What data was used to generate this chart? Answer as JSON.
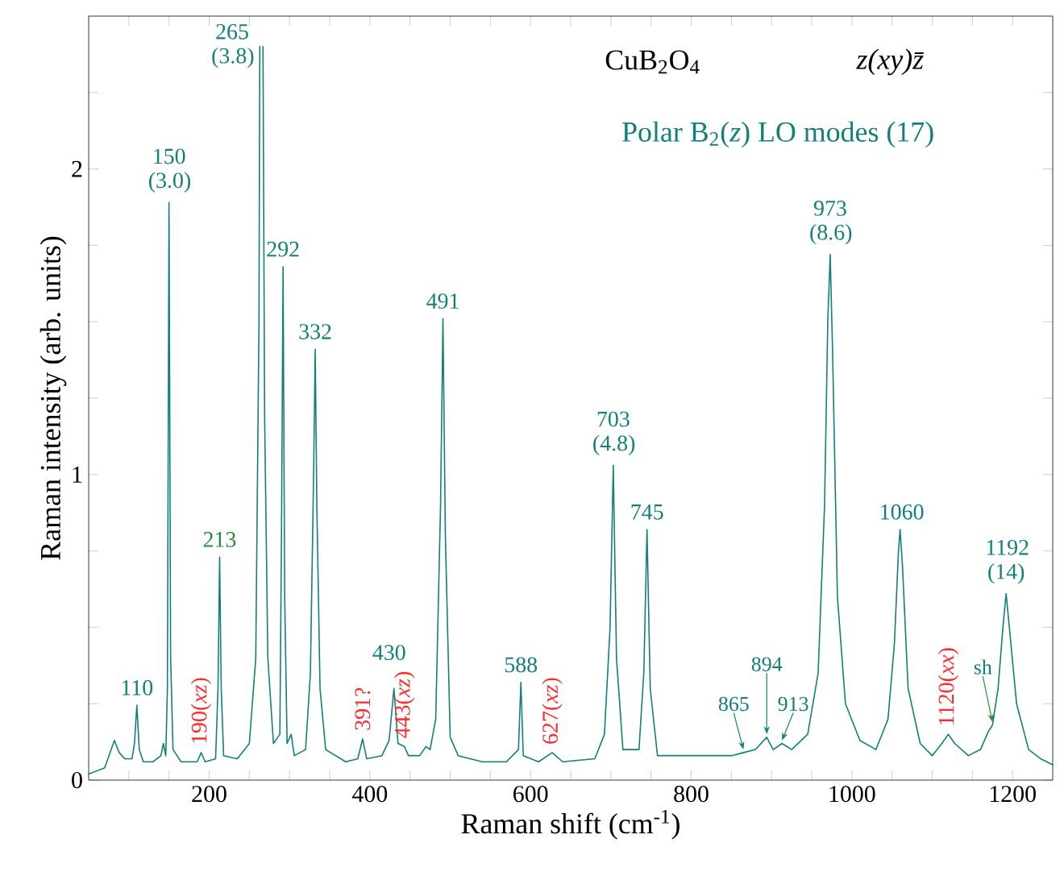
{
  "chart_data": {
    "type": "line",
    "title": "CuB$_{2}$O$_{4}$",
    "subtitle": "Polar B$_{2}$(*z*) LO modes (17)",
    "xlabel": "Raman shift (cm$^{-1}$)",
    "ylabel": "Raman intensity (arb. units)",
    "xlim": [
      50,
      1250
    ],
    "ylim": [
      0,
      2.5
    ],
    "xticks": [
      {
        "value": 100,
        "label": null
      },
      {
        "value": 150,
        "label": null
      },
      200,
      {
        "value": 250,
        "label": null
      },
      {
        "value": 300,
        "label": null
      },
      {
        "value": 350,
        "label": null
      },
      400,
      {
        "value": 450,
        "label": null
      },
      {
        "value": 500,
        "label": null
      },
      {
        "value": 550,
        "label": null
      },
      600,
      {
        "value": 650,
        "label": null
      },
      {
        "value": 700,
        "label": null
      },
      {
        "value": 750,
        "label": null
      },
      800,
      {
        "value": 850,
        "label": null
      },
      {
        "value": 900,
        "label": null
      },
      {
        "value": 950,
        "label": null
      },
      1000,
      {
        "value": 1050,
        "label": null
      },
      {
        "value": 1100,
        "label": null
      },
      {
        "value": 1150,
        "label": null
      },
      1200
    ],
    "yticks": [
      0,
      {
        "value": 0.25,
        "label": null
      },
      {
        "value": 0.5,
        "label": null
      },
      {
        "value": 0.75,
        "label": null
      },
      1,
      {
        "value": 1.25,
        "label": null
      },
      {
        "value": 1.5,
        "label": null
      },
      {
        "value": 1.75,
        "label": null
      },
      2,
      {
        "value": 2.25,
        "label": null
      }
    ],
    "grid": false,
    "marker": "none",
    "line_style": "solid",
    "series": [
      {
        "color": "#11807a",
        "x": [
          50,
          60,
          70,
          78,
          82,
          88,
          95,
          104,
          107,
          110,
          113,
          118,
          130,
          140,
          143,
          146,
          148,
          150,
          152,
          155,
          165,
          185,
          190,
          195,
          208,
          211,
          213,
          215,
          218,
          235,
          250,
          258,
          262,
          263,
          265,
          267,
          269,
          273,
          280,
          288,
          290,
          292,
          294,
          297,
          302,
          306,
          320,
          326,
          330,
          332,
          334,
          338,
          345,
          370,
          385,
          391,
          396,
          415,
          424,
          430,
          435,
          443,
          448,
          462,
          470,
          475,
          482,
          488,
          491,
          494,
          500,
          510,
          540,
          570,
          585,
          588,
          591,
          610,
          627,
          640,
          680,
          692,
          699,
          703,
          707,
          715,
          735,
          741,
          745,
          749,
          758,
          800,
          850,
          865,
          880,
          894,
          902,
          913,
          925,
          945,
          958,
          966,
          970,
          973,
          976,
          982,
          992,
          1010,
          1030,
          1045,
          1053,
          1058,
          1060,
          1063,
          1070,
          1085,
          1100,
          1112,
          1120,
          1128,
          1145,
          1160,
          1170,
          1175,
          1182,
          1188,
          1192,
          1196,
          1205,
          1220,
          1235,
          1250
        ],
        "values": [
          0.02,
          0.03,
          0.04,
          0.1,
          0.13,
          0.09,
          0.07,
          0.07,
          0.12,
          0.245,
          0.1,
          0.06,
          0.06,
          0.08,
          0.12,
          0.08,
          0.3,
          1.89,
          0.4,
          0.1,
          0.06,
          0.06,
          0.09,
          0.06,
          0.07,
          0.3,
          0.73,
          0.3,
          0.08,
          0.07,
          0.12,
          0.4,
          1.5,
          2.4,
          null,
          2.4,
          1.2,
          0.4,
          0.12,
          0.15,
          0.8,
          1.68,
          0.6,
          0.12,
          0.15,
          0.08,
          0.1,
          0.35,
          1.0,
          1.41,
          0.9,
          0.3,
          0.1,
          0.06,
          0.07,
          0.135,
          0.07,
          0.08,
          0.13,
          0.3,
          0.12,
          0.11,
          0.08,
          0.08,
          0.11,
          0.1,
          0.2,
          0.9,
          1.51,
          0.8,
          0.14,
          0.08,
          0.06,
          0.06,
          0.1,
          0.32,
          0.08,
          0.06,
          0.09,
          0.06,
          0.07,
          0.15,
          0.5,
          1.03,
          0.4,
          0.1,
          0.1,
          0.35,
          0.82,
          0.3,
          0.08,
          0.08,
          0.08,
          0.09,
          0.1,
          0.14,
          0.1,
          0.12,
          0.1,
          0.15,
          0.35,
          0.9,
          1.5,
          1.72,
          1.4,
          0.6,
          0.25,
          0.13,
          0.1,
          0.2,
          0.45,
          0.75,
          0.82,
          0.7,
          0.3,
          0.12,
          0.08,
          0.12,
          0.15,
          0.12,
          0.08,
          0.1,
          0.16,
          0.18,
          0.3,
          0.5,
          0.61,
          0.5,
          0.25,
          0.1,
          0.07,
          0.05
        ]
      }
    ],
    "annotations": [
      {
        "text": "110",
        "x": 110,
        "y": 0.245
      },
      {
        "text": "150 (3.0)",
        "x": 150,
        "y": 1.89
      },
      {
        "text": "190(*xz*)",
        "x": 190,
        "y": 0.09
      },
      {
        "text": "213",
        "x": 213,
        "y": 0.73
      },
      "265 (3.8)",
      {
        "text": "292",
        "x": 292,
        "y": 1.68
      },
      {
        "text": "332",
        "x": 332,
        "y": 1.41
      },
      {
        "text": "391?",
        "x": 391,
        "y": 0.135
      },
      {
        "text": "430",
        "x": 430,
        "y": 0.3
      },
      {
        "text": "443(*xz*)",
        "x": 443,
        "y": 0.11
      },
      {
        "text": "491",
        "x": 491,
        "y": 1.51
      },
      {
        "text": "588",
        "x": 588,
        "y": 0.32
      },
      {
        "text": "627(*xz*)",
        "x": 627,
        "y": 0.09
      },
      {
        "text": "703 (4.8)",
        "x": 703,
        "y": 1.03
      },
      {
        "text": "745",
        "x": 745,
        "y": 0.82
      },
      {
        "text": "865",
        "x": 865,
        "y": 0.09
      },
      {
        "text": "894",
        "x": 894,
        "y": 0.14
      },
      {
        "text": "913",
        "x": 913,
        "y": 0.12
      },
      {
        "text": "973 (8.6)",
        "x": 973,
        "y": 1.72
      },
      {
        "text": "1060",
        "x": 1060,
        "y": 0.82
      },
      {
        "text": "1120(*xx*)",
        "x": 1120,
        "y": 0.15
      },
      {
        "text": "sh",
        "x": 1175,
        "y": 0.18
      },
      {
        "text": "1192 (14)",
        "x": 1192,
        "y": 0.61
      },
      "*z(xy)z̄*"
    ]
  }
}
